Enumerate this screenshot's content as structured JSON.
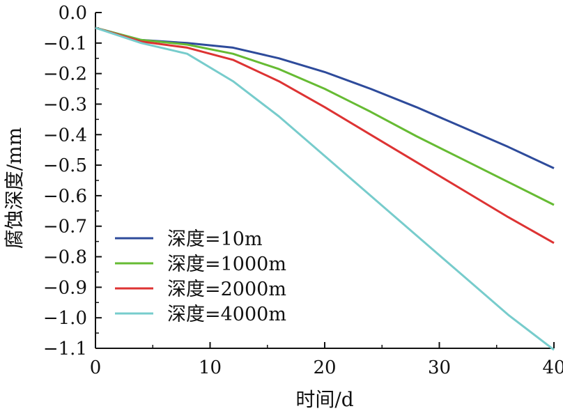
{
  "chart_data": {
    "type": "line",
    "xlabel": "时间/d",
    "ylabel": "腐蚀深度/mm",
    "xlim": [
      0,
      40
    ],
    "ylim": [
      -1.1,
      0.0
    ],
    "x_ticks": [
      0,
      10,
      20,
      30,
      40
    ],
    "x_tick_labels": [
      "0",
      "10",
      "20",
      "30",
      "40"
    ],
    "y_ticks": [
      0.0,
      -0.1,
      -0.2,
      -0.3,
      -0.4,
      -0.5,
      -0.6,
      -0.7,
      -0.8,
      -0.9,
      -1.0,
      -1.1
    ],
    "y_tick_labels": [
      "0.0",
      "−0.1",
      "−0.2",
      "−0.3",
      "−0.4",
      "−0.5",
      "−0.6",
      "−0.7",
      "−0.8",
      "−0.9",
      "−1.0",
      "−1.1"
    ],
    "grid": false,
    "legend_position": "bottom-left",
    "series": [
      {
        "name": "深度=10m",
        "color": "#2e4b9b",
        "x": [
          0,
          4,
          8,
          12,
          16,
          20,
          24,
          28,
          32,
          36,
          40
        ],
        "y": [
          -0.05,
          -0.09,
          -0.1,
          -0.115,
          -0.15,
          -0.195,
          -0.25,
          -0.31,
          -0.375,
          -0.44,
          -0.51
        ]
      },
      {
        "name": "深度=1000m",
        "color": "#66bb33",
        "x": [
          0,
          4,
          8,
          12,
          16,
          20,
          24,
          28,
          32,
          36,
          40
        ],
        "y": [
          -0.05,
          -0.09,
          -0.105,
          -0.135,
          -0.185,
          -0.25,
          -0.325,
          -0.405,
          -0.48,
          -0.555,
          -0.63
        ]
      },
      {
        "name": "深度=2000m",
        "color": "#dd3333",
        "x": [
          0,
          4,
          8,
          12,
          16,
          20,
          24,
          28,
          32,
          36,
          40
        ],
        "y": [
          -0.05,
          -0.095,
          -0.115,
          -0.155,
          -0.225,
          -0.31,
          -0.4,
          -0.49,
          -0.58,
          -0.67,
          -0.755
        ]
      },
      {
        "name": "深度=4000m",
        "color": "#77cccc",
        "x": [
          0,
          4,
          8,
          12,
          16,
          20,
          24,
          28,
          32,
          36,
          40
        ],
        "y": [
          -0.05,
          -0.1,
          -0.135,
          -0.225,
          -0.34,
          -0.47,
          -0.6,
          -0.73,
          -0.86,
          -0.99,
          -1.105
        ]
      }
    ]
  }
}
